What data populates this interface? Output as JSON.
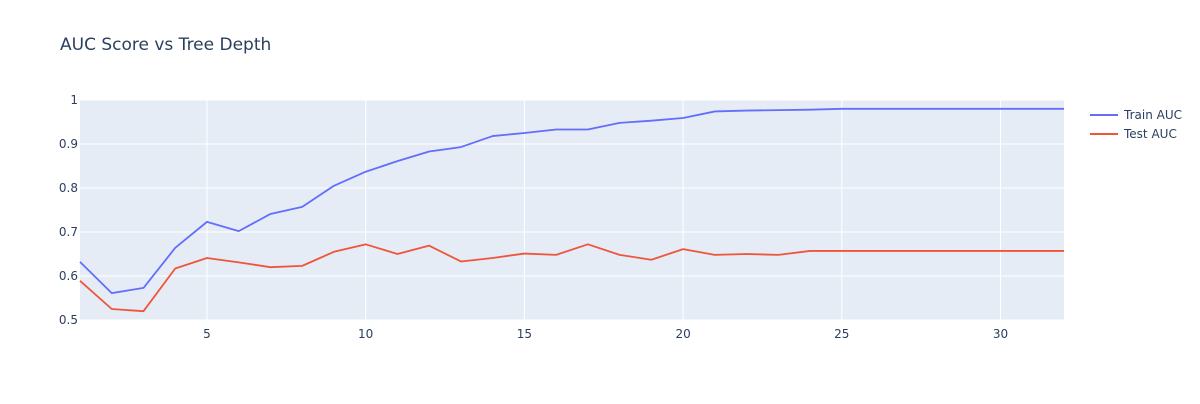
{
  "chart_data": {
    "type": "line",
    "title": "AUC Score vs Tree Depth",
    "xlabel": "",
    "ylabel": "",
    "xlim": [
      1,
      32
    ],
    "ylim": [
      0.5,
      1.0
    ],
    "x_ticks": [
      5,
      10,
      15,
      20,
      25,
      30
    ],
    "x_tick_labels": [
      "5",
      "10",
      "15",
      "20",
      "25",
      "30"
    ],
    "y_ticks": [
      0.5,
      0.6,
      0.7,
      0.8,
      0.9,
      1.0
    ],
    "y_tick_labels": [
      "0.5",
      "0.6",
      "0.7",
      "0.8",
      "0.9",
      "1"
    ],
    "grid": true,
    "legend_position": "top-right",
    "background_color": "#E5ECF6",
    "x": [
      1,
      2,
      3,
      4,
      5,
      6,
      7,
      8,
      9,
      10,
      11,
      12,
      13,
      14,
      15,
      16,
      17,
      18,
      19,
      20,
      21,
      22,
      23,
      24,
      25,
      26,
      27,
      28,
      29,
      30,
      31,
      32
    ],
    "series": [
      {
        "name": "Train AUC",
        "color": "#636EFA",
        "values": [
          0.632,
          0.561,
          0.573,
          0.664,
          0.723,
          0.702,
          0.741,
          0.757,
          0.805,
          0.837,
          0.861,
          0.883,
          0.893,
          0.918,
          0.925,
          0.933,
          0.933,
          0.948,
          0.953,
          0.959,
          0.974,
          0.976,
          0.977,
          0.978,
          0.98,
          0.98,
          0.98,
          0.98,
          0.98,
          0.98,
          0.98,
          0.98
        ]
      },
      {
        "name": "Test AUC",
        "color": "#EF553B",
        "values": [
          0.589,
          0.525,
          0.52,
          0.617,
          0.641,
          0.631,
          0.62,
          0.623,
          0.655,
          0.672,
          0.65,
          0.669,
          0.633,
          0.641,
          0.651,
          0.648,
          0.672,
          0.648,
          0.637,
          0.661,
          0.648,
          0.65,
          0.648,
          0.657,
          0.657,
          0.657,
          0.657,
          0.657,
          0.657,
          0.657,
          0.657,
          0.657
        ]
      }
    ]
  }
}
